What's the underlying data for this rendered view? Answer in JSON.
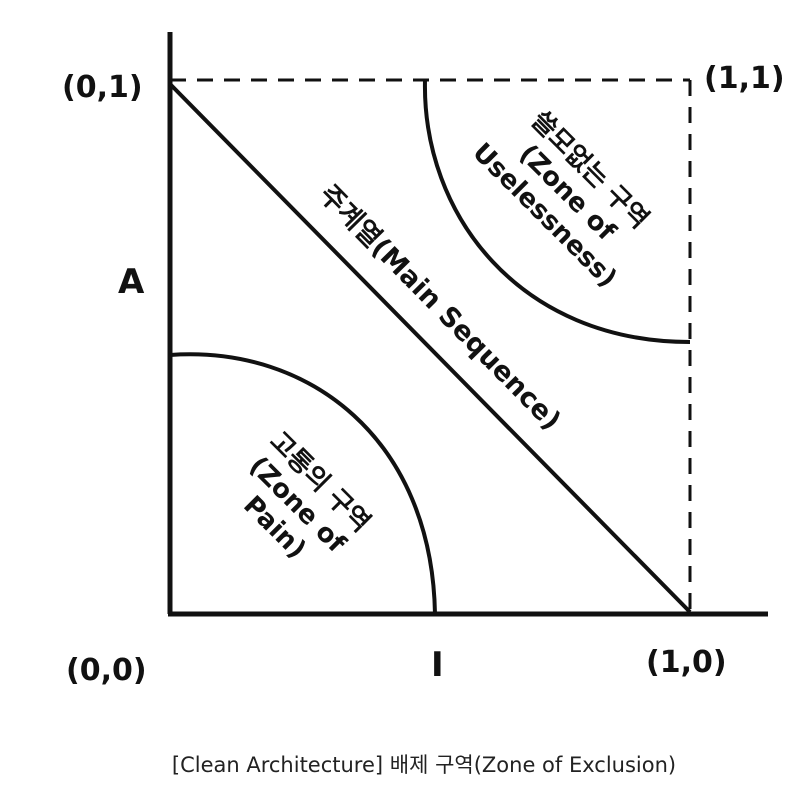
{
  "diagram": {
    "axes": {
      "y_label": "A",
      "x_label": "I"
    },
    "corners": {
      "origin": "(0,0)",
      "top_left": "(0,1)",
      "top_right": "(1,1)",
      "bottom_right": "(1,0)"
    },
    "main_sequence": {
      "label": "주계열(Main Sequence)"
    },
    "zone_of_pain": {
      "lines": [
        "고통의 구역",
        "(Zone of",
        "Pain)"
      ]
    },
    "zone_of_uselessness": {
      "lines": [
        "쓸모없는 구역",
        "(Zone of",
        "Uselessness)"
      ]
    },
    "caption": "[Clean Architecture] 배제 구역(Zone of Exclusion)"
  },
  "colors": {
    "ink": "#111111",
    "background": "#ffffff"
  }
}
